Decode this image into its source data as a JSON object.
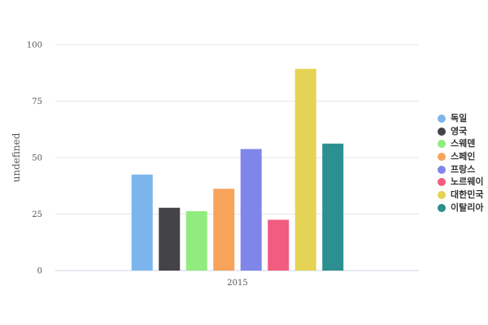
{
  "chart_data": {
    "type": "bar",
    "categories": [
      "2015"
    ],
    "series": [
      {
        "name": "독일",
        "values": [
          42.5
        ],
        "color": "#7cb5ec"
      },
      {
        "name": "영국",
        "values": [
          27.8
        ],
        "color": "#434348"
      },
      {
        "name": "스웨덴",
        "values": [
          26.3
        ],
        "color": "#90ed7d"
      },
      {
        "name": "스페인",
        "values": [
          36.2
        ],
        "color": "#f7a35c"
      },
      {
        "name": "프랑스",
        "values": [
          53.8
        ],
        "color": "#8085e9"
      },
      {
        "name": "노르웨이",
        "values": [
          22.5
        ],
        "color": "#f15c80"
      },
      {
        "name": "대한민국",
        "values": [
          89.3
        ],
        "color": "#e4d354"
      },
      {
        "name": "이탈리아",
        "values": [
          56.2
        ],
        "color": "#2b908f"
      }
    ],
    "title": "",
    "xlabel": "",
    "ylabel": "undefined",
    "ylim": [
      0,
      100
    ],
    "yticks": [
      0,
      25,
      50,
      75,
      100
    ],
    "ytick_labels": [
      "0",
      "25",
      "50",
      "75",
      "100"
    ],
    "grid": true,
    "legend": "right"
  }
}
